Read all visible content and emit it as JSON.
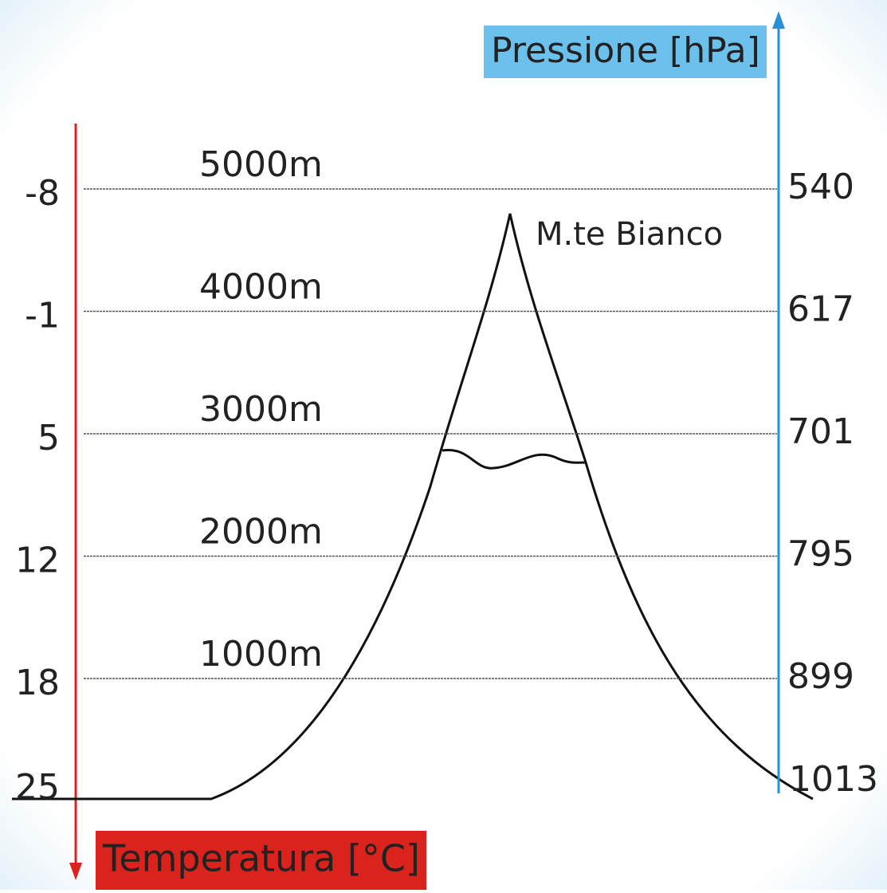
{
  "pressure_axis": {
    "label": "Pressione [hPa]"
  },
  "temperature_axis": {
    "label": "Temperatura  [°C]"
  },
  "peak": {
    "label": "M.te Bianco"
  },
  "levels": [
    {
      "altitude": "5000m",
      "temperature": "-8",
      "pressure": "540"
    },
    {
      "altitude": "4000m",
      "temperature": "-1",
      "pressure": "617"
    },
    {
      "altitude": "3000m",
      "temperature": "5",
      "pressure": "701"
    },
    {
      "altitude": "2000m",
      "temperature": "12",
      "pressure": "795"
    },
    {
      "altitude": "1000m",
      "temperature": "18",
      "pressure": "899"
    }
  ],
  "ground": {
    "temperature": "25",
    "pressure": "1013"
  }
}
